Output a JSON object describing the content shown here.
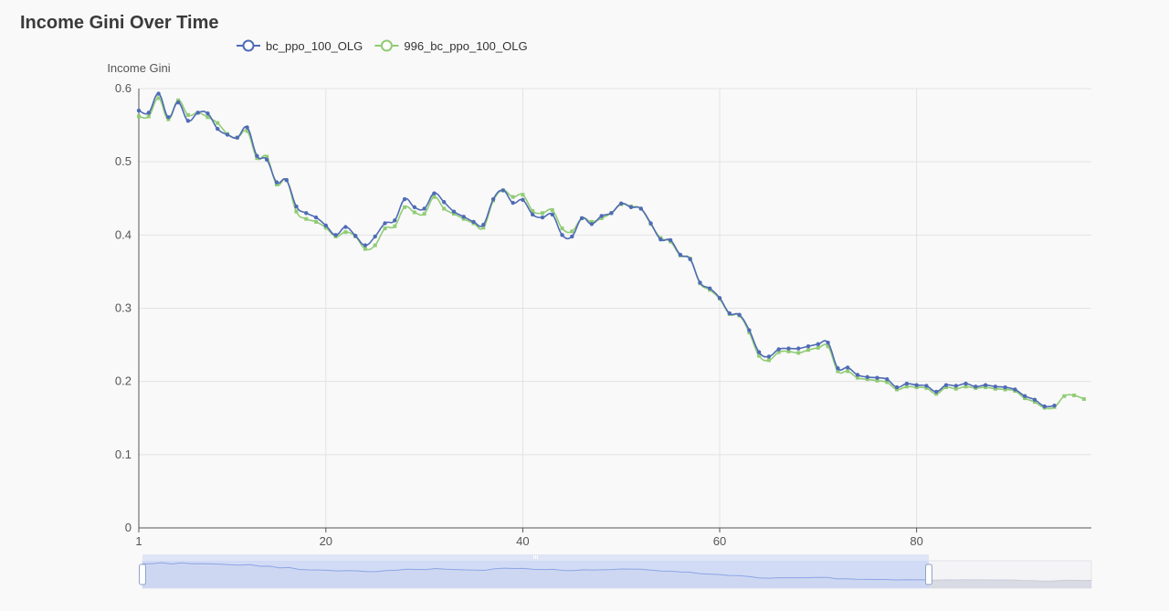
{
  "chart_data": {
    "type": "line",
    "title": "Income Gini Over Time",
    "ylabel": "Income Gini",
    "xlabel": "",
    "ylim": [
      0,
      0.6
    ],
    "y_ticks": [
      "0",
      "0.1",
      "0.2",
      "0.3",
      "0.4",
      "0.5",
      "0.6"
    ],
    "x_ticks": [
      "1",
      "20",
      "40",
      "60",
      "80"
    ],
    "x_start": 1,
    "legend_position": "top",
    "grid": true,
    "series": [
      {
        "name": "bc_ppo_100_OLG",
        "color": "#4f6bb5",
        "values": [
          0.57,
          0.567,
          0.593,
          0.561,
          0.581,
          0.556,
          0.567,
          0.566,
          0.545,
          0.537,
          0.533,
          0.547,
          0.508,
          0.503,
          0.472,
          0.475,
          0.439,
          0.43,
          0.424,
          0.413,
          0.4,
          0.411,
          0.399,
          0.386,
          0.398,
          0.416,
          0.42,
          0.449,
          0.438,
          0.436,
          0.457,
          0.445,
          0.432,
          0.425,
          0.418,
          0.414,
          0.449,
          0.461,
          0.444,
          0.448,
          0.428,
          0.424,
          0.428,
          0.4,
          0.398,
          0.423,
          0.415,
          0.426,
          0.43,
          0.443,
          0.438,
          0.436,
          0.416,
          0.394,
          0.393,
          0.373,
          0.367,
          0.335,
          0.327,
          0.314,
          0.293,
          0.291,
          0.27,
          0.24,
          0.234,
          0.244,
          0.245,
          0.245,
          0.248,
          0.251,
          0.253,
          0.218,
          0.219,
          0.209,
          0.206,
          0.205,
          0.203,
          0.192,
          0.197,
          0.195,
          0.194,
          0.186,
          0.195,
          0.194,
          0.197,
          0.193,
          0.195,
          0.193,
          0.192,
          0.189,
          0.18,
          0.175,
          0.166,
          0.167
        ]
      },
      {
        "name": "996_bc_ppo_100_OLG",
        "color": "#91cc75",
        "values": [
          0.562,
          0.562,
          0.587,
          0.558,
          0.584,
          0.564,
          0.567,
          0.561,
          0.553,
          0.538,
          0.533,
          0.542,
          0.505,
          0.507,
          0.469,
          0.475,
          0.432,
          0.422,
          0.418,
          0.41,
          0.398,
          0.404,
          0.398,
          0.381,
          0.386,
          0.409,
          0.412,
          0.438,
          0.431,
          0.429,
          0.452,
          0.436,
          0.429,
          0.422,
          0.416,
          0.41,
          0.447,
          0.461,
          0.452,
          0.455,
          0.433,
          0.43,
          0.434,
          0.409,
          0.405,
          0.423,
          0.418,
          0.423,
          0.43,
          0.442,
          0.439,
          0.436,
          0.415,
          0.396,
          0.391,
          0.372,
          0.368,
          0.334,
          0.325,
          0.313,
          0.292,
          0.29,
          0.267,
          0.235,
          0.229,
          0.24,
          0.241,
          0.239,
          0.243,
          0.246,
          0.248,
          0.214,
          0.214,
          0.205,
          0.203,
          0.201,
          0.199,
          0.189,
          0.193,
          0.192,
          0.191,
          0.183,
          0.192,
          0.19,
          0.193,
          0.191,
          0.192,
          0.19,
          0.189,
          0.187,
          0.177,
          0.172,
          0.164,
          0.165,
          0.18,
          0.181,
          0.176,
          0.178
        ]
      }
    ]
  }
}
